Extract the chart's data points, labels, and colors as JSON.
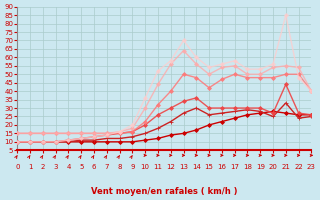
{
  "xlabel": "Vent moyen/en rafales ( km/h )",
  "xlim": [
    0,
    23
  ],
  "ylim": [
    5,
    90
  ],
  "yticks": [
    5,
    10,
    15,
    20,
    25,
    30,
    35,
    40,
    45,
    50,
    55,
    60,
    65,
    70,
    75,
    80,
    85,
    90
  ],
  "xticks": [
    0,
    1,
    2,
    3,
    4,
    5,
    6,
    7,
    8,
    9,
    10,
    11,
    12,
    13,
    14,
    15,
    16,
    17,
    18,
    19,
    20,
    21,
    22,
    23
  ],
  "background_color": "#cce8f0",
  "grid_color": "#aacccc",
  "series": [
    {
      "x": [
        0,
        1,
        2,
        3,
        4,
        5,
        6,
        7,
        8,
        9,
        10,
        11,
        12,
        13,
        14,
        15,
        16,
        17,
        18,
        19,
        20,
        21,
        22,
        23
      ],
      "y": [
        10,
        10,
        10,
        10,
        10,
        10,
        10,
        10,
        10,
        10,
        11,
        12,
        14,
        15,
        17,
        20,
        22,
        24,
        26,
        27,
        28,
        27,
        26,
        26
      ],
      "color": "#cc0000",
      "alpha": 1.0,
      "lw": 1.0,
      "marker": "D",
      "ms": 2.0
    },
    {
      "x": [
        0,
        1,
        2,
        3,
        4,
        5,
        6,
        7,
        8,
        9,
        10,
        11,
        12,
        13,
        14,
        15,
        16,
        17,
        18,
        19,
        20,
        21,
        22,
        23
      ],
      "y": [
        10,
        10,
        10,
        10,
        10,
        11,
        11,
        12,
        12,
        13,
        15,
        18,
        22,
        27,
        30,
        26,
        27,
        28,
        29,
        28,
        25,
        33,
        24,
        25
      ],
      "color": "#cc2222",
      "alpha": 1.0,
      "lw": 1.0,
      "marker": "+",
      "ms": 3.5
    },
    {
      "x": [
        0,
        1,
        2,
        3,
        4,
        5,
        6,
        7,
        8,
        9,
        10,
        11,
        12,
        13,
        14,
        15,
        16,
        17,
        18,
        19,
        20,
        21,
        22,
        23
      ],
      "y": [
        10,
        10,
        10,
        10,
        11,
        12,
        13,
        14,
        15,
        16,
        20,
        26,
        30,
        34,
        36,
        30,
        30,
        30,
        30,
        30,
        27,
        44,
        27,
        26
      ],
      "color": "#ee4444",
      "alpha": 0.9,
      "lw": 1.0,
      "marker": "D",
      "ms": 2.0
    },
    {
      "x": [
        0,
        1,
        2,
        3,
        4,
        5,
        6,
        7,
        8,
        9,
        10,
        11,
        12,
        13,
        14,
        15,
        16,
        17,
        18,
        19,
        20,
        21,
        22,
        23
      ],
      "y": [
        15,
        15,
        15,
        15,
        15,
        15,
        15,
        15,
        15,
        16,
        22,
        32,
        40,
        50,
        48,
        42,
        47,
        50,
        48,
        48,
        48,
        50,
        50,
        40
      ],
      "color": "#ff7777",
      "alpha": 0.85,
      "lw": 1.0,
      "marker": "D",
      "ms": 2.0
    },
    {
      "x": [
        0,
        1,
        2,
        3,
        4,
        5,
        6,
        7,
        8,
        9,
        10,
        11,
        12,
        13,
        14,
        15,
        16,
        17,
        18,
        19,
        20,
        21,
        22,
        23
      ],
      "y": [
        15,
        15,
        15,
        15,
        15,
        15,
        15,
        15,
        16,
        18,
        30,
        44,
        56,
        64,
        56,
        50,
        54,
        55,
        50,
        50,
        54,
        55,
        54,
        40
      ],
      "color": "#ffaaaa",
      "alpha": 0.8,
      "lw": 1.0,
      "marker": "D",
      "ms": 2.0
    },
    {
      "x": [
        0,
        1,
        2,
        3,
        4,
        5,
        6,
        7,
        8,
        9,
        10,
        11,
        12,
        13,
        14,
        15,
        16,
        17,
        18,
        19,
        20,
        21,
        22,
        23
      ],
      "y": [
        10,
        10,
        10,
        10,
        11,
        12,
        13,
        14,
        16,
        20,
        36,
        52,
        58,
        70,
        60,
        54,
        56,
        58,
        53,
        53,
        56,
        85,
        48,
        40
      ],
      "color": "#ffcccc",
      "alpha": 0.75,
      "lw": 1.0,
      "marker": "D",
      "ms": 2.0
    }
  ],
  "arrow_color": "#cc0000",
  "label_fontsize": 6,
  "tick_fontsize": 5
}
